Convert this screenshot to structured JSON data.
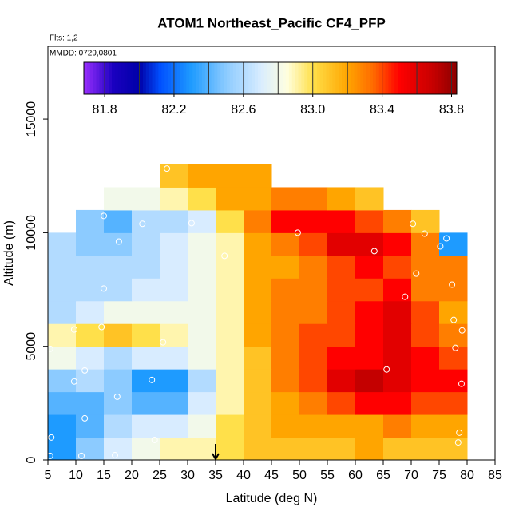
{
  "chart_data": {
    "type": "heatmap",
    "title": "ATOM1 Northeast_Pacific CF4_PFP",
    "subtitle": "Flts: 1,2",
    "annotation": "MMDD: 0729,0801",
    "xlabel": "Latitude (deg N)",
    "ylabel": "Altitude (m)",
    "xlim": [
      5,
      85
    ],
    "ylim": [
      0,
      18200
    ],
    "xticks": [
      5,
      10,
      15,
      20,
      25,
      30,
      35,
      40,
      45,
      50,
      55,
      60,
      65,
      70,
      75,
      80,
      85
    ],
    "yticks": [
      0,
      5000,
      10000,
      15000
    ],
    "x_bins": [
      5,
      10,
      15,
      20,
      25,
      30,
      35,
      40,
      45,
      50,
      55,
      60,
      65,
      70,
      75,
      80
    ],
    "y_bins": [
      0,
      1000,
      2000,
      3000,
      4000,
      5000,
      6000,
      7000,
      8000,
      9000,
      10000,
      11000,
      12000,
      13000
    ],
    "z": [
      [
        82.3,
        82.5,
        82.7,
        82.8,
        82.9,
        82.9,
        83.0,
        83.1,
        83.1,
        83.1,
        83.1,
        83.2,
        83.1,
        83.1,
        83.1
      ],
      [
        82.3,
        82.4,
        82.6,
        82.7,
        82.7,
        82.8,
        83.0,
        83.1,
        83.2,
        83.2,
        83.2,
        83.2,
        83.3,
        83.2,
        83.2
      ],
      [
        82.4,
        82.4,
        82.5,
        82.4,
        82.4,
        82.7,
        82.9,
        83.1,
        83.2,
        83.3,
        83.4,
        83.5,
        83.5,
        83.4,
        83.4
      ],
      [
        82.5,
        82.6,
        82.5,
        82.3,
        82.3,
        82.6,
        82.9,
        83.1,
        83.3,
        83.4,
        83.6,
        83.7,
        83.6,
        83.5,
        83.5
      ],
      [
        82.8,
        82.7,
        82.6,
        82.7,
        82.7,
        82.8,
        82.9,
        83.1,
        83.3,
        83.4,
        83.5,
        83.5,
        83.6,
        83.5,
        83.4
      ],
      [
        82.9,
        83.0,
        83.1,
        83.0,
        82.9,
        82.8,
        82.9,
        83.2,
        83.3,
        83.4,
        83.4,
        83.5,
        83.6,
        83.4,
        83.3
      ],
      [
        82.6,
        82.7,
        82.8,
        82.8,
        82.8,
        82.8,
        82.9,
        83.2,
        83.3,
        83.3,
        83.4,
        83.5,
        83.6,
        83.4,
        83.2
      ],
      [
        82.6,
        82.6,
        82.6,
        82.7,
        82.7,
        82.8,
        82.9,
        83.2,
        83.3,
        83.3,
        83.4,
        83.4,
        83.5,
        83.3,
        83.3
      ],
      [
        82.6,
        82.6,
        82.6,
        82.6,
        82.7,
        82.8,
        82.9,
        83.2,
        83.2,
        83.3,
        83.4,
        83.5,
        83.4,
        83.3,
        83.3
      ],
      [
        82.6,
        82.5,
        82.5,
        82.6,
        82.7,
        82.8,
        82.9,
        83.2,
        83.3,
        83.4,
        83.6,
        83.6,
        83.5,
        83.3,
        82.3
      ],
      [
        null,
        82.5,
        82.4,
        82.6,
        82.6,
        82.7,
        83.0,
        83.3,
        83.5,
        83.5,
        83.5,
        83.4,
        83.3,
        83.1,
        null
      ],
      [
        null,
        null,
        82.8,
        82.8,
        82.9,
        83.0,
        83.2,
        83.2,
        83.3,
        83.3,
        83.2,
        83.1,
        null,
        null,
        null
      ],
      [
        null,
        null,
        null,
        null,
        83.1,
        83.2,
        83.2,
        83.2,
        null,
        null,
        null,
        null,
        null,
        null,
        null
      ]
    ],
    "samples": {
      "x": [
        5.4,
        5.6,
        5.4,
        11,
        11.6,
        9.7,
        11.6,
        9.7,
        15,
        21.9,
        30.7,
        17.7,
        14.6,
        15,
        17.4,
        23.6,
        24.1,
        25.6,
        26.3,
        36.6,
        49.7,
        63.4,
        65.6,
        68.9,
        70.9,
        67.6,
        70.3,
        72.4,
        75.2,
        76.3,
        77.3,
        77.6,
        77.9,
        79.1,
        79,
        78.6,
        78.4,
        17
      ],
      "y": [
        4890,
        990,
        180,
        180,
        1830,
        3450,
        3940,
        5740,
        10740,
        10390,
        10420,
        9610,
        5850,
        7540,
        2780,
        3520,
        880,
        5180,
        12820,
        8980,
        10000,
        9190,
        3980,
        7180,
        8200,
        11410,
        10390,
        9960,
        9400,
        9750,
        7710,
        6160,
        4930,
        5700,
        3350,
        1200,
        770,
        210
      ],
      "color": "#ffffff"
    },
    "arrow_x": 35,
    "colorbar": {
      "lim": [
        81.68,
        83.83
      ],
      "ticks": [
        {
          "value": 81.8,
          "label": "81.8"
        },
        {
          "value": 82.2,
          "label": "82.2"
        },
        {
          "value": 82.6,
          "label": "82.6"
        },
        {
          "value": 83.0,
          "label": "83.0"
        },
        {
          "value": 83.4,
          "label": "83.4"
        },
        {
          "value": 83.8,
          "label": "83.8"
        }
      ],
      "breaks": [
        81.8,
        82.0,
        82.2,
        82.4,
        82.6,
        82.8,
        83.0,
        83.2,
        83.4,
        83.6,
        83.8
      ],
      "stops": [
        {
          "value": 81.68,
          "color": "#9b30ff"
        },
        {
          "value": 81.85,
          "color": "#1a00c0"
        },
        {
          "value": 82.0,
          "color": "#0000a8"
        },
        {
          "value": 82.12,
          "color": "#0050ff"
        },
        {
          "value": 82.3,
          "color": "#1e9bff"
        },
        {
          "value": 82.5,
          "color": "#8ccbff"
        },
        {
          "value": 82.7,
          "color": "#d8ecff"
        },
        {
          "value": 82.85,
          "color": "#ffffe0"
        },
        {
          "value": 83.0,
          "color": "#ffe04a"
        },
        {
          "value": 83.2,
          "color": "#ffa500"
        },
        {
          "value": 83.35,
          "color": "#ff6a00"
        },
        {
          "value": 83.5,
          "color": "#ff0000"
        },
        {
          "value": 83.7,
          "color": "#c40000"
        },
        {
          "value": 83.83,
          "color": "#8b0000"
        }
      ]
    }
  }
}
